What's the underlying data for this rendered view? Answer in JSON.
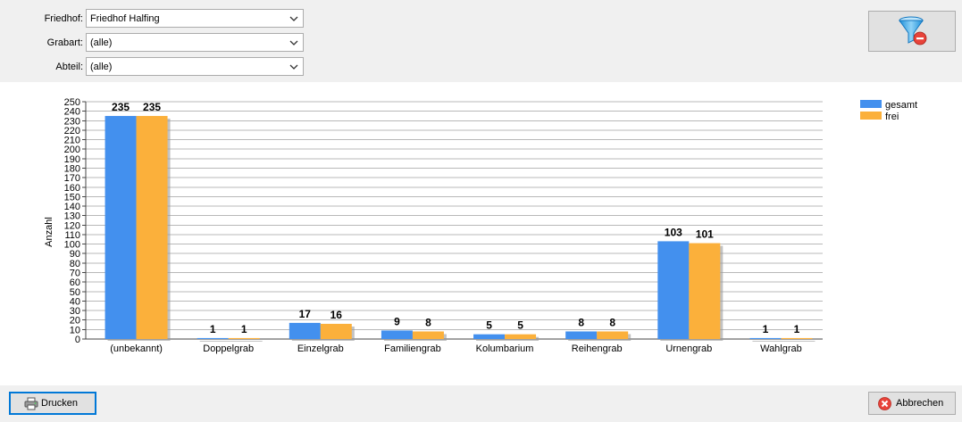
{
  "filters": [
    {
      "label": "Friedhof:",
      "value": "Friedhof Halfing"
    },
    {
      "label": "Grabart:",
      "value": "(alle)"
    },
    {
      "label": "Abteil:",
      "value": "(alle)"
    }
  ],
  "footer": {
    "print_label": "Drucken",
    "cancel_label": "Abbrechen"
  },
  "colors": {
    "gesamt": "#4390ee",
    "frei": "#fbb03b",
    "cancel_icon": "#e8433a"
  },
  "chart_data": {
    "type": "bar",
    "ylabel": "Anzahl",
    "xlabel": "",
    "ylim": [
      0,
      250
    ],
    "yticks": [
      0,
      10,
      20,
      30,
      40,
      50,
      60,
      70,
      80,
      90,
      100,
      110,
      120,
      130,
      140,
      150,
      160,
      170,
      180,
      190,
      200,
      210,
      220,
      230,
      240,
      250
    ],
    "categories": [
      "(unbekannt)",
      "Doppelgrab",
      "Einzelgrab",
      "Familiengrab",
      "Kolumbarium",
      "Reihengrab",
      "Urnengrab",
      "Wahlgrab"
    ],
    "series": [
      {
        "name": "gesamt",
        "values": [
          235,
          1,
          17,
          9,
          5,
          8,
          103,
          1
        ]
      },
      {
        "name": "frei",
        "values": [
          235,
          1,
          16,
          8,
          5,
          8,
          101,
          1
        ]
      }
    ],
    "legend": "top-right",
    "grid": true
  }
}
